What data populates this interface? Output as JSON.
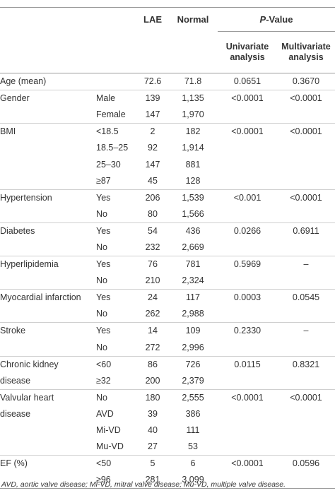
{
  "header": {
    "lae": "LAE",
    "normal": "Normal",
    "pvalue_p": "P",
    "pvalue_rest": "-Value",
    "univariate": "Univariate analysis",
    "multivariate": "Multivariate analysis"
  },
  "rows": [
    {
      "variable": "Age (mean)",
      "category": "",
      "lae": "72.6",
      "normal": "71.8",
      "univariate": "0.0651",
      "multivariate": "0.3670"
    },
    {
      "variable": "Gender",
      "category": "Male",
      "lae": "139",
      "normal": "1,135",
      "univariate": "<0.0001",
      "multivariate": "<0.0001"
    },
    {
      "variable": "",
      "category": "Female",
      "lae": "147",
      "normal": "1,970",
      "univariate": "",
      "multivariate": ""
    },
    {
      "variable": "BMI",
      "category": "<18.5",
      "lae": "2",
      "normal": "182",
      "univariate": "<0.0001",
      "multivariate": "<0.0001"
    },
    {
      "variable": "",
      "category": "18.5–25",
      "lae": "92",
      "normal": "1,914",
      "univariate": "",
      "multivariate": ""
    },
    {
      "variable": "",
      "category": "25–30",
      "lae": "147",
      "normal": "881",
      "univariate": "",
      "multivariate": ""
    },
    {
      "variable": "",
      "category": "≥87",
      "lae": "45",
      "normal": "128",
      "univariate": "",
      "multivariate": ""
    },
    {
      "variable": "Hypertension",
      "category": "Yes",
      "lae": "206",
      "normal": "1,539",
      "univariate": "<0.001",
      "multivariate": "<0.0001"
    },
    {
      "variable": "",
      "category": "No",
      "lae": "80",
      "normal": "1,566",
      "univariate": "",
      "multivariate": ""
    },
    {
      "variable": "Diabetes",
      "category": "Yes",
      "lae": "54",
      "normal": "436",
      "univariate": "0.0266",
      "multivariate": "0.6911"
    },
    {
      "variable": "",
      "category": "No",
      "lae": "232",
      "normal": "2,669",
      "univariate": "",
      "multivariate": ""
    },
    {
      "variable": "Hyperlipidemia",
      "category": "Yes",
      "lae": "76",
      "normal": "781",
      "univariate": "0.5969",
      "multivariate": "–"
    },
    {
      "variable": "",
      "category": "No",
      "lae": "210",
      "normal": "2,324",
      "univariate": "",
      "multivariate": ""
    },
    {
      "variable": "Myocardial infarction",
      "category": "Yes",
      "lae": "24",
      "normal": "117",
      "univariate": "0.0003",
      "multivariate": "0.0545"
    },
    {
      "variable": "",
      "category": "No",
      "lae": "262",
      "normal": "2,988",
      "univariate": "",
      "multivariate": ""
    },
    {
      "variable": "Stroke",
      "category": "Yes",
      "lae": "14",
      "normal": "109",
      "univariate": "0.2330",
      "multivariate": "–"
    },
    {
      "variable": "",
      "category": "No",
      "lae": "272",
      "normal": "2,996",
      "univariate": "",
      "multivariate": ""
    },
    {
      "variable": "Chronic kidney",
      "category": "<60",
      "lae": "86",
      "normal": "726",
      "univariate": "0.0115",
      "multivariate": "0.8321"
    },
    {
      "variable": "disease",
      "category": "≥32",
      "lae": "200",
      "normal": "2,379",
      "univariate": "",
      "multivariate": ""
    },
    {
      "variable": "Valvular heart",
      "category": "No",
      "lae": "180",
      "normal": "2,555",
      "univariate": "<0.0001",
      "multivariate": "<0.0001"
    },
    {
      "variable": "disease",
      "category": "AVD",
      "lae": "39",
      "normal": "386",
      "univariate": "",
      "multivariate": ""
    },
    {
      "variable": "",
      "category": "Mi-VD",
      "lae": "40",
      "normal": "111",
      "univariate": "",
      "multivariate": ""
    },
    {
      "variable": "",
      "category": "Mu-VD",
      "lae": "27",
      "normal": "53",
      "univariate": "",
      "multivariate": ""
    },
    {
      "variable": "EF (%)",
      "category": "<50",
      "lae": "5",
      "normal": "6",
      "univariate": "<0.0001",
      "multivariate": "0.0596"
    },
    {
      "variable": "",
      "category": "≥96",
      "lae": "281",
      "normal": "3,099",
      "univariate": "",
      "multivariate": ""
    }
  ],
  "footnote": "AVD, aortic valve disease; Mi-VD, mitral valve disease; Mu-VD, multiple valve disease."
}
